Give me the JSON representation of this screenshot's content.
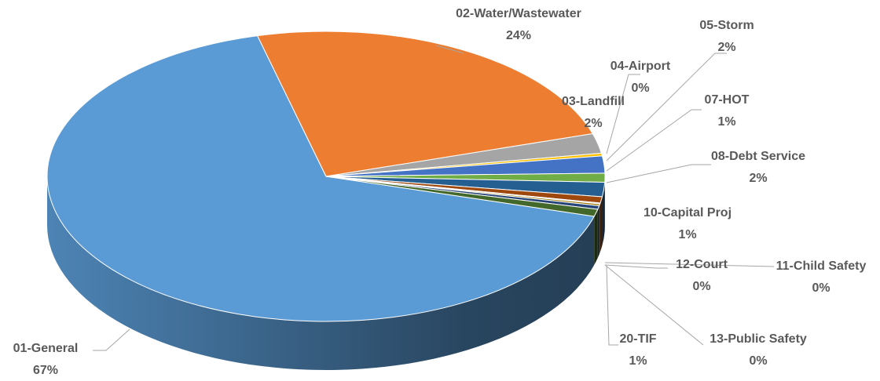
{
  "chart_data": {
    "type": "pie",
    "categories": [
      "01-General",
      "02-Water/Wastewater",
      "03-Landfill",
      "04-Airport",
      "05-Storm",
      "07-HOT",
      "08-Debt Service",
      "10-Capital Proj",
      "11-Child Safety",
      "12-Court",
      "13-Public Safety",
      "20-TIF"
    ],
    "values": [
      66.6,
      24.2,
      2.2,
      0.3,
      1.9,
      1.0,
      1.6,
      0.7,
      0.1,
      0.2,
      0.4,
      0.8
    ],
    "value_labels": [
      "67%",
      "24%",
      "2%",
      "0%",
      "2%",
      "1%",
      "2%",
      "1%",
      "0%",
      "0%",
      "0%",
      "1%"
    ],
    "colors": [
      "#5b9bd5",
      "#ed7d31",
      "#a5a5a5",
      "#ffc000",
      "#4472c4",
      "#70ad47",
      "#255e91",
      "#9e480e",
      "#636363",
      "#997300",
      "#264478",
      "#43682b"
    ]
  }
}
